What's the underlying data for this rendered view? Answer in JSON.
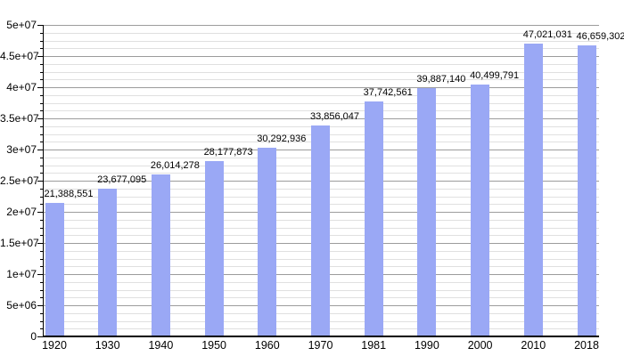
{
  "chart_data": {
    "type": "bar",
    "title": "",
    "xlabel": "",
    "ylabel": "",
    "categories": [
      "1920",
      "1930",
      "1940",
      "1950",
      "1960",
      "1970",
      "1981",
      "1990",
      "2000",
      "2010",
      "2018"
    ],
    "values": [
      21388551,
      23677095,
      26014278,
      28177873,
      30292936,
      33856047,
      37742561,
      39887140,
      40499791,
      47021031,
      46659302
    ],
    "value_labels": [
      "21,388,551",
      "23,677,095",
      "26,014,278",
      "28,177,873",
      "30,292,936",
      "33,856,047",
      "37,742,561",
      "39,887,140",
      "40,499,791",
      "47,021,031",
      "46,659,302"
    ],
    "ylim": [
      0,
      50000000
    ],
    "y_major_step": 5000000,
    "y_minor_divisions": 4,
    "y_tick_values": [
      0,
      5000000,
      10000000,
      15000000,
      20000000,
      25000000,
      30000000,
      35000000,
      40000000,
      45000000,
      50000000
    ],
    "y_tick_labels": [
      "0",
      "5e+06",
      "1e+07",
      "1.5e+07",
      "2e+07",
      "2.5e+07",
      "3e+07",
      "3.5e+07",
      "4e+07",
      "4.5e+07",
      "5e+07"
    ],
    "grid": "major-and-minor",
    "legend": null,
    "colors": {
      "bar": "#9aa8f5",
      "major_grid": "#9c9c9c",
      "minor_grid": "#e0e0e0",
      "axis": "#000000",
      "text": "#000000",
      "background": "#ffffff"
    }
  }
}
